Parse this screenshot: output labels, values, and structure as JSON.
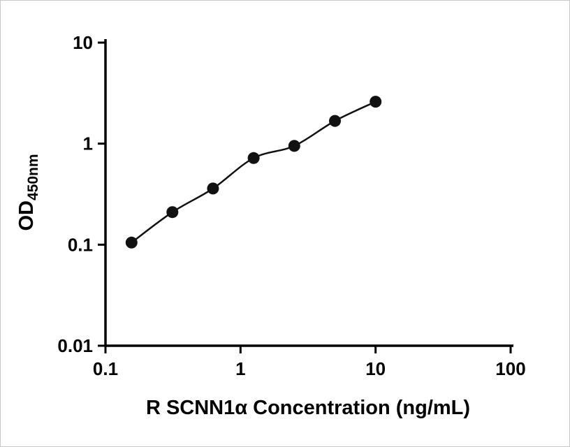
{
  "page": {
    "background": "#ffffff",
    "border_color": "#c9c9c9"
  },
  "chart_data": {
    "type": "scatter",
    "title": "",
    "xlabel": "R SCNN1α Concentration (ng/mL)",
    "ylabel": "OD",
    "ylabel_subscript": "450nm",
    "xscale": "log",
    "yscale": "log",
    "xlim": [
      0.1,
      100
    ],
    "ylim": [
      0.01,
      10
    ],
    "x_ticks": [
      "0.1",
      "1",
      "10",
      "100"
    ],
    "y_ticks": [
      "0.01",
      "0.1",
      "1",
      "10"
    ],
    "grid": false,
    "legend": "none",
    "axis_color": "#000000",
    "series": [
      {
        "x": [
          0.156,
          0.313,
          0.625,
          1.25,
          2.5,
          5,
          10
        ],
        "y": [
          0.105,
          0.21,
          0.36,
          0.72,
          0.95,
          1.68,
          2.6
        ],
        "marker": "circle",
        "marker_color": "#111111",
        "line_color": "#111111"
      }
    ]
  }
}
